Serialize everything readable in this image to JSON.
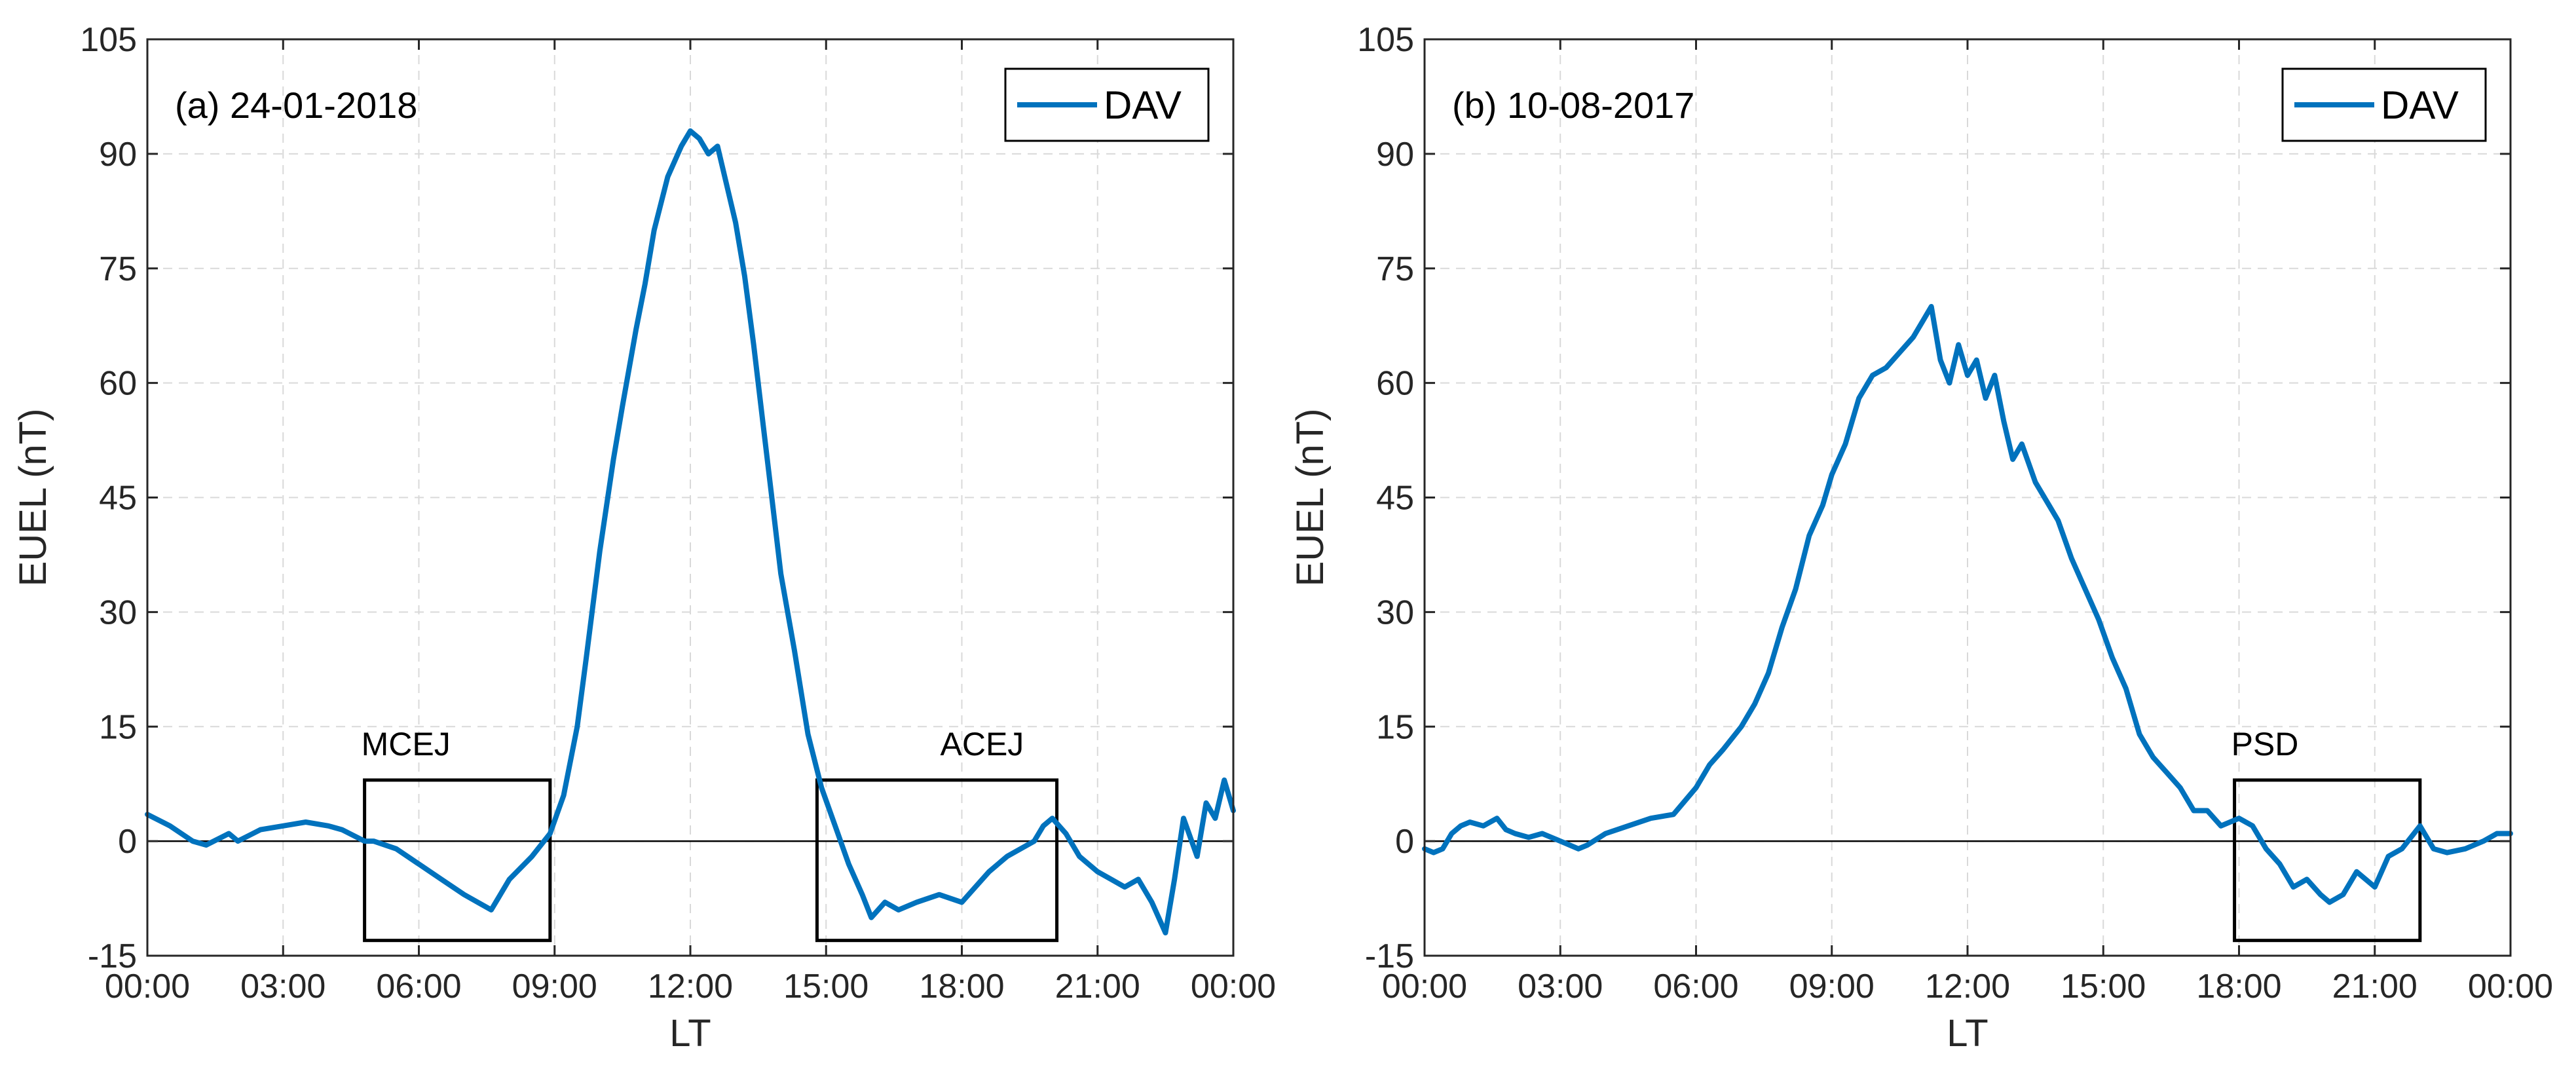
{
  "line_color": "#0072BD",
  "chart_data": [
    {
      "type": "line",
      "panel_label": "(a) 24-01-2018",
      "xlabel": "LT",
      "ylabel": "EUEL (nT)",
      "xlim": [
        0,
        24
      ],
      "ylim": [
        -15,
        105
      ],
      "xtick_values": [
        0,
        3,
        6,
        9,
        12,
        15,
        18,
        21,
        24
      ],
      "xtick_labels": [
        "00:00",
        "03:00",
        "06:00",
        "09:00",
        "12:00",
        "15:00",
        "18:00",
        "21:00",
        "00:00"
      ],
      "ytick_values": [
        -15,
        0,
        15,
        30,
        45,
        60,
        75,
        90,
        105
      ],
      "ytick_labels": [
        "-15",
        "0",
        "15",
        "30",
        "45",
        "60",
        "75",
        "90",
        "105"
      ],
      "grid": true,
      "legend": {
        "labels": [
          "DAV"
        ],
        "location": "top-right"
      },
      "series": [
        {
          "name": "DAV",
          "x": [
            0.0,
            0.5,
            1.0,
            1.3,
            1.8,
            2.0,
            2.5,
            3.0,
            3.5,
            4.0,
            4.3,
            4.8,
            5.0,
            5.5,
            6.0,
            6.5,
            7.0,
            7.3,
            7.6,
            7.8,
            8.0,
            8.5,
            8.9,
            9.2,
            9.5,
            9.7,
            10.0,
            10.3,
            10.5,
            10.8,
            11.0,
            11.2,
            11.5,
            11.8,
            12.0,
            12.2,
            12.4,
            12.6,
            12.8,
            13.0,
            13.2,
            13.4,
            13.6,
            13.8,
            14.0,
            14.3,
            14.6,
            14.9,
            15.2,
            15.5,
            15.8,
            16.0,
            16.3,
            16.6,
            17.0,
            17.5,
            18.0,
            18.3,
            18.6,
            19.0,
            19.3,
            19.6,
            19.8,
            20.0,
            20.3,
            20.6,
            21.0,
            21.3,
            21.6,
            21.9,
            22.2,
            22.5,
            22.7,
            22.9,
            23.2,
            23.4,
            23.6,
            23.8,
            24.0
          ],
          "y": [
            3.5,
            2.0,
            0.0,
            -0.5,
            1.0,
            0.0,
            1.5,
            2.0,
            2.5,
            2.0,
            1.5,
            0.0,
            0.0,
            -1.0,
            -3.0,
            -5.0,
            -7.0,
            -8.0,
            -9.0,
            -7.0,
            -5.0,
            -2.0,
            1.0,
            6.0,
            15.0,
            24.0,
            38.0,
            50.0,
            57.0,
            67.0,
            73.0,
            80.0,
            87.0,
            91.0,
            93.0,
            92.0,
            90.0,
            91.0,
            86.0,
            81.0,
            74.0,
            65.0,
            55.0,
            45.0,
            35.0,
            25.0,
            14.0,
            7.0,
            2.0,
            -3.0,
            -7.0,
            -10.0,
            -8.0,
            -9.0,
            -8.0,
            -7.0,
            -8.0,
            -6.0,
            -4.0,
            -2.0,
            -1.0,
            0.0,
            2.0,
            3.0,
            1.0,
            -2.0,
            -4.0,
            -5.0,
            -6.0,
            -5.0,
            -8.0,
            -12.0,
            -5.0,
            3.0,
            -2.0,
            5.0,
            3.0,
            8.0,
            4.0
          ]
        }
      ],
      "annotations": [
        {
          "label": "MCEJ",
          "x_range": [
            4.8,
            8.9
          ],
          "y_range": [
            -13,
            8
          ]
        },
        {
          "label": "ACEJ",
          "x_range": [
            14.8,
            20.1
          ],
          "y_range": [
            -13,
            8
          ]
        }
      ]
    },
    {
      "type": "line",
      "panel_label": "(b) 10-08-2017",
      "xlabel": "LT",
      "ylabel": "EUEL (nT)",
      "xlim": [
        0,
        24
      ],
      "ylim": [
        -15,
        105
      ],
      "xtick_values": [
        0,
        3,
        6,
        9,
        12,
        15,
        18,
        21,
        24
      ],
      "xtick_labels": [
        "00:00",
        "03:00",
        "06:00",
        "09:00",
        "12:00",
        "15:00",
        "18:00",
        "21:00",
        "00:00"
      ],
      "ytick_values": [
        -15,
        0,
        15,
        30,
        45,
        60,
        75,
        90,
        105
      ],
      "ytick_labels": [
        "-15",
        "0",
        "15",
        "30",
        "45",
        "60",
        "75",
        "90",
        "105"
      ],
      "grid": true,
      "legend": {
        "labels": [
          "DAV"
        ],
        "location": "top-right"
      },
      "series": [
        {
          "name": "DAV",
          "x": [
            0.0,
            0.2,
            0.4,
            0.6,
            0.8,
            1.0,
            1.3,
            1.6,
            1.8,
            2.0,
            2.3,
            2.6,
            3.0,
            3.4,
            3.6,
            4.0,
            4.5,
            5.0,
            5.5,
            6.0,
            6.3,
            6.6,
            7.0,
            7.3,
            7.6,
            7.9,
            8.2,
            8.5,
            8.8,
            9.0,
            9.3,
            9.6,
            9.9,
            10.2,
            10.5,
            10.8,
            11.0,
            11.2,
            11.4,
            11.6,
            11.8,
            12.0,
            12.2,
            12.4,
            12.6,
            12.8,
            13.0,
            13.2,
            13.5,
            13.8,
            14.0,
            14.3,
            14.6,
            14.9,
            15.2,
            15.5,
            15.8,
            16.1,
            16.4,
            16.7,
            17.0,
            17.3,
            17.6,
            18.0,
            18.3,
            18.6,
            18.9,
            19.2,
            19.5,
            19.8,
            20.0,
            20.3,
            20.6,
            21.0,
            21.3,
            21.6,
            22.0,
            22.3,
            22.6,
            23.0,
            23.4,
            23.7,
            24.0
          ],
          "y": [
            -1.0,
            -1.5,
            -1.0,
            1.0,
            2.0,
            2.5,
            2.0,
            3.0,
            1.5,
            1.0,
            0.5,
            1.0,
            0.0,
            -1.0,
            -0.5,
            1.0,
            2.0,
            3.0,
            3.5,
            7.0,
            10.0,
            12.0,
            15.0,
            18.0,
            22.0,
            28.0,
            33.0,
            40.0,
            44.0,
            48.0,
            52.0,
            58.0,
            61.0,
            62.0,
            64.0,
            66.0,
            68.0,
            70.0,
            63.0,
            60.0,
            65.0,
            61.0,
            63.0,
            58.0,
            61.0,
            55.0,
            50.0,
            52.0,
            47.0,
            44.0,
            42.0,
            37.0,
            33.0,
            29.0,
            24.0,
            20.0,
            14.0,
            11.0,
            9.0,
            7.0,
            4.0,
            4.0,
            2.0,
            3.0,
            2.0,
            -1.0,
            -3.0,
            -6.0,
            -5.0,
            -7.0,
            -8.0,
            -7.0,
            -4.0,
            -6.0,
            -2.0,
            -1.0,
            2.0,
            -1.0,
            -1.5,
            -1.0,
            0.0,
            1.0,
            1.0
          ]
        }
      ],
      "annotations": [
        {
          "label": "PSD",
          "x_range": [
            17.9,
            22.0
          ],
          "y_range": [
            -13,
            8
          ]
        }
      ]
    }
  ]
}
